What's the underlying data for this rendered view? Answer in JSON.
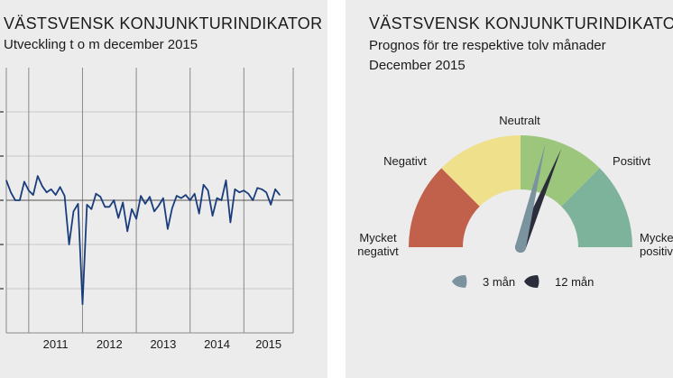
{
  "left": {
    "title": "VÄSTSVENSK KONJUNKTURINDIKATOR",
    "subtitle": "Utveckling t o m december 2015"
  },
  "right": {
    "title": "VÄSTSVENSK KONJUNKTURINDIKATOR",
    "subtitle1": "Prognos för tre respektive tolv månader",
    "subtitle2": "December 2015"
  },
  "chart_data": [
    {
      "type": "line",
      "x_tick_labels": [
        "2011",
        "2012",
        "2013",
        "2014",
        "2015"
      ],
      "x_range": [
        "2010-08",
        "2015-12"
      ],
      "ylim": [
        -3,
        3
      ],
      "reference_line": 0,
      "grid": true,
      "series": [
        {
          "color": "#1a3d7c",
          "points": [
            [
              "2010-08",
              0.45
            ],
            [
              "2010-09",
              0.18
            ],
            [
              "2010-10",
              0.0
            ],
            [
              "2010-11",
              0.0
            ],
            [
              "2010-12",
              0.42
            ],
            [
              "2011-01",
              0.22
            ],
            [
              "2011-02",
              0.12
            ],
            [
              "2011-03",
              0.55
            ],
            [
              "2011-04",
              0.32
            ],
            [
              "2011-05",
              0.18
            ],
            [
              "2011-06",
              0.25
            ],
            [
              "2011-07",
              0.12
            ],
            [
              "2011-08",
              0.3
            ],
            [
              "2011-09",
              0.1
            ],
            [
              "2011-10",
              -1.0
            ],
            [
              "2011-11",
              -0.25
            ],
            [
              "2011-12",
              -0.08
            ],
            [
              "2012-01",
              -2.35
            ],
            [
              "2012-02",
              -0.1
            ],
            [
              "2012-03",
              -0.2
            ],
            [
              "2012-04",
              0.15
            ],
            [
              "2012-05",
              0.08
            ],
            [
              "2012-06",
              -0.15
            ],
            [
              "2012-07",
              -0.15
            ],
            [
              "2012-08",
              0.0
            ],
            [
              "2012-09",
              -0.4
            ],
            [
              "2012-10",
              -0.05
            ],
            [
              "2012-11",
              -0.7
            ],
            [
              "2012-12",
              -0.2
            ],
            [
              "2013-01",
              -0.42
            ],
            [
              "2013-02",
              0.1
            ],
            [
              "2013-03",
              -0.08
            ],
            [
              "2013-04",
              0.08
            ],
            [
              "2013-05",
              -0.25
            ],
            [
              "2013-06",
              -0.12
            ],
            [
              "2013-07",
              0.05
            ],
            [
              "2013-08",
              -0.65
            ],
            [
              "2013-09",
              -0.18
            ],
            [
              "2013-10",
              0.1
            ],
            [
              "2013-11",
              0.05
            ],
            [
              "2013-12",
              0.12
            ],
            [
              "2014-01",
              0.0
            ],
            [
              "2014-02",
              0.15
            ],
            [
              "2014-03",
              -0.3
            ],
            [
              "2014-04",
              0.35
            ],
            [
              "2014-05",
              0.22
            ],
            [
              "2014-06",
              -0.35
            ],
            [
              "2014-07",
              0.05
            ],
            [
              "2014-08",
              0.0
            ],
            [
              "2014-09",
              0.45
            ],
            [
              "2014-10",
              -0.5
            ],
            [
              "2014-11",
              0.25
            ],
            [
              "2014-12",
              0.18
            ],
            [
              "2015-01",
              0.22
            ],
            [
              "2015-02",
              0.15
            ],
            [
              "2015-03",
              0.0
            ],
            [
              "2015-04",
              0.28
            ],
            [
              "2015-05",
              0.25
            ],
            [
              "2015-06",
              0.18
            ],
            [
              "2015-07",
              -0.1
            ],
            [
              "2015-08",
              0.25
            ],
            [
              "2015-09",
              0.12
            ]
          ]
        }
      ]
    },
    {
      "type": "gauge",
      "scale": [
        -2,
        2
      ],
      "zones": [
        {
          "color": "#c2614b",
          "from": -2,
          "to": -1
        },
        {
          "color": "#efe08c",
          "from": -1,
          "to": 0
        },
        {
          "color": "#9cc67b",
          "from": 0,
          "to": 1
        },
        {
          "color": "#7eb39b",
          "from": 1,
          "to": 2
        }
      ],
      "zone_labels": [
        "Mycket negativt",
        "Negativt",
        "Neutralt",
        "Positivt",
        "Mycket positivt"
      ],
      "needles": [
        {
          "name": "3 mån",
          "value": 0.3,
          "color": "#7b939e"
        },
        {
          "name": "12 mån",
          "value": 0.5,
          "color": "#2b2d3a"
        }
      ]
    }
  ]
}
